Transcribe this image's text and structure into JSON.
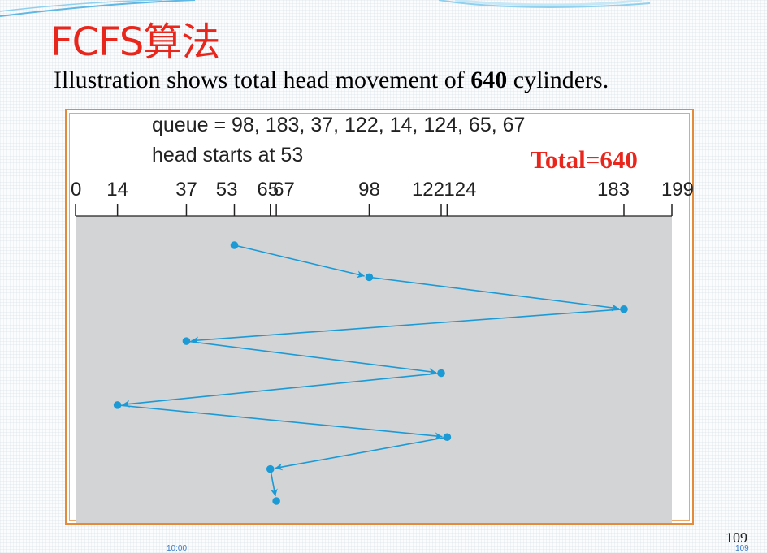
{
  "slide": {
    "title": "FCFS算法",
    "subtitle_prefix": "Illustration shows total head movement of ",
    "subtitle_value": "640",
    "subtitle_suffix": " cylinders.",
    "page_number": "109",
    "footer_date": "10:00",
    "footer_page": "109"
  },
  "figure": {
    "queue_text": "queue = 98, 183, 37, 122, 14, 124, 65, 67",
    "head_text": "head starts at 53",
    "total_text": "Total=640",
    "colors": {
      "line": "#1b9ad6",
      "panel": "#d3d4d5",
      "total": "#e8261c",
      "frame": "#e38b3b"
    }
  },
  "chart_data": {
    "type": "line",
    "axis_ticks": [
      0,
      14,
      37,
      53,
      65,
      67,
      98,
      122,
      124,
      183,
      199
    ],
    "xlim": [
      0,
      199
    ],
    "head_start": 53,
    "queue": [
      98,
      183,
      37,
      122,
      14,
      124,
      65,
      67
    ],
    "sequence": [
      53,
      98,
      183,
      37,
      122,
      14,
      124,
      65,
      67
    ],
    "total_head_movement": 640
  }
}
